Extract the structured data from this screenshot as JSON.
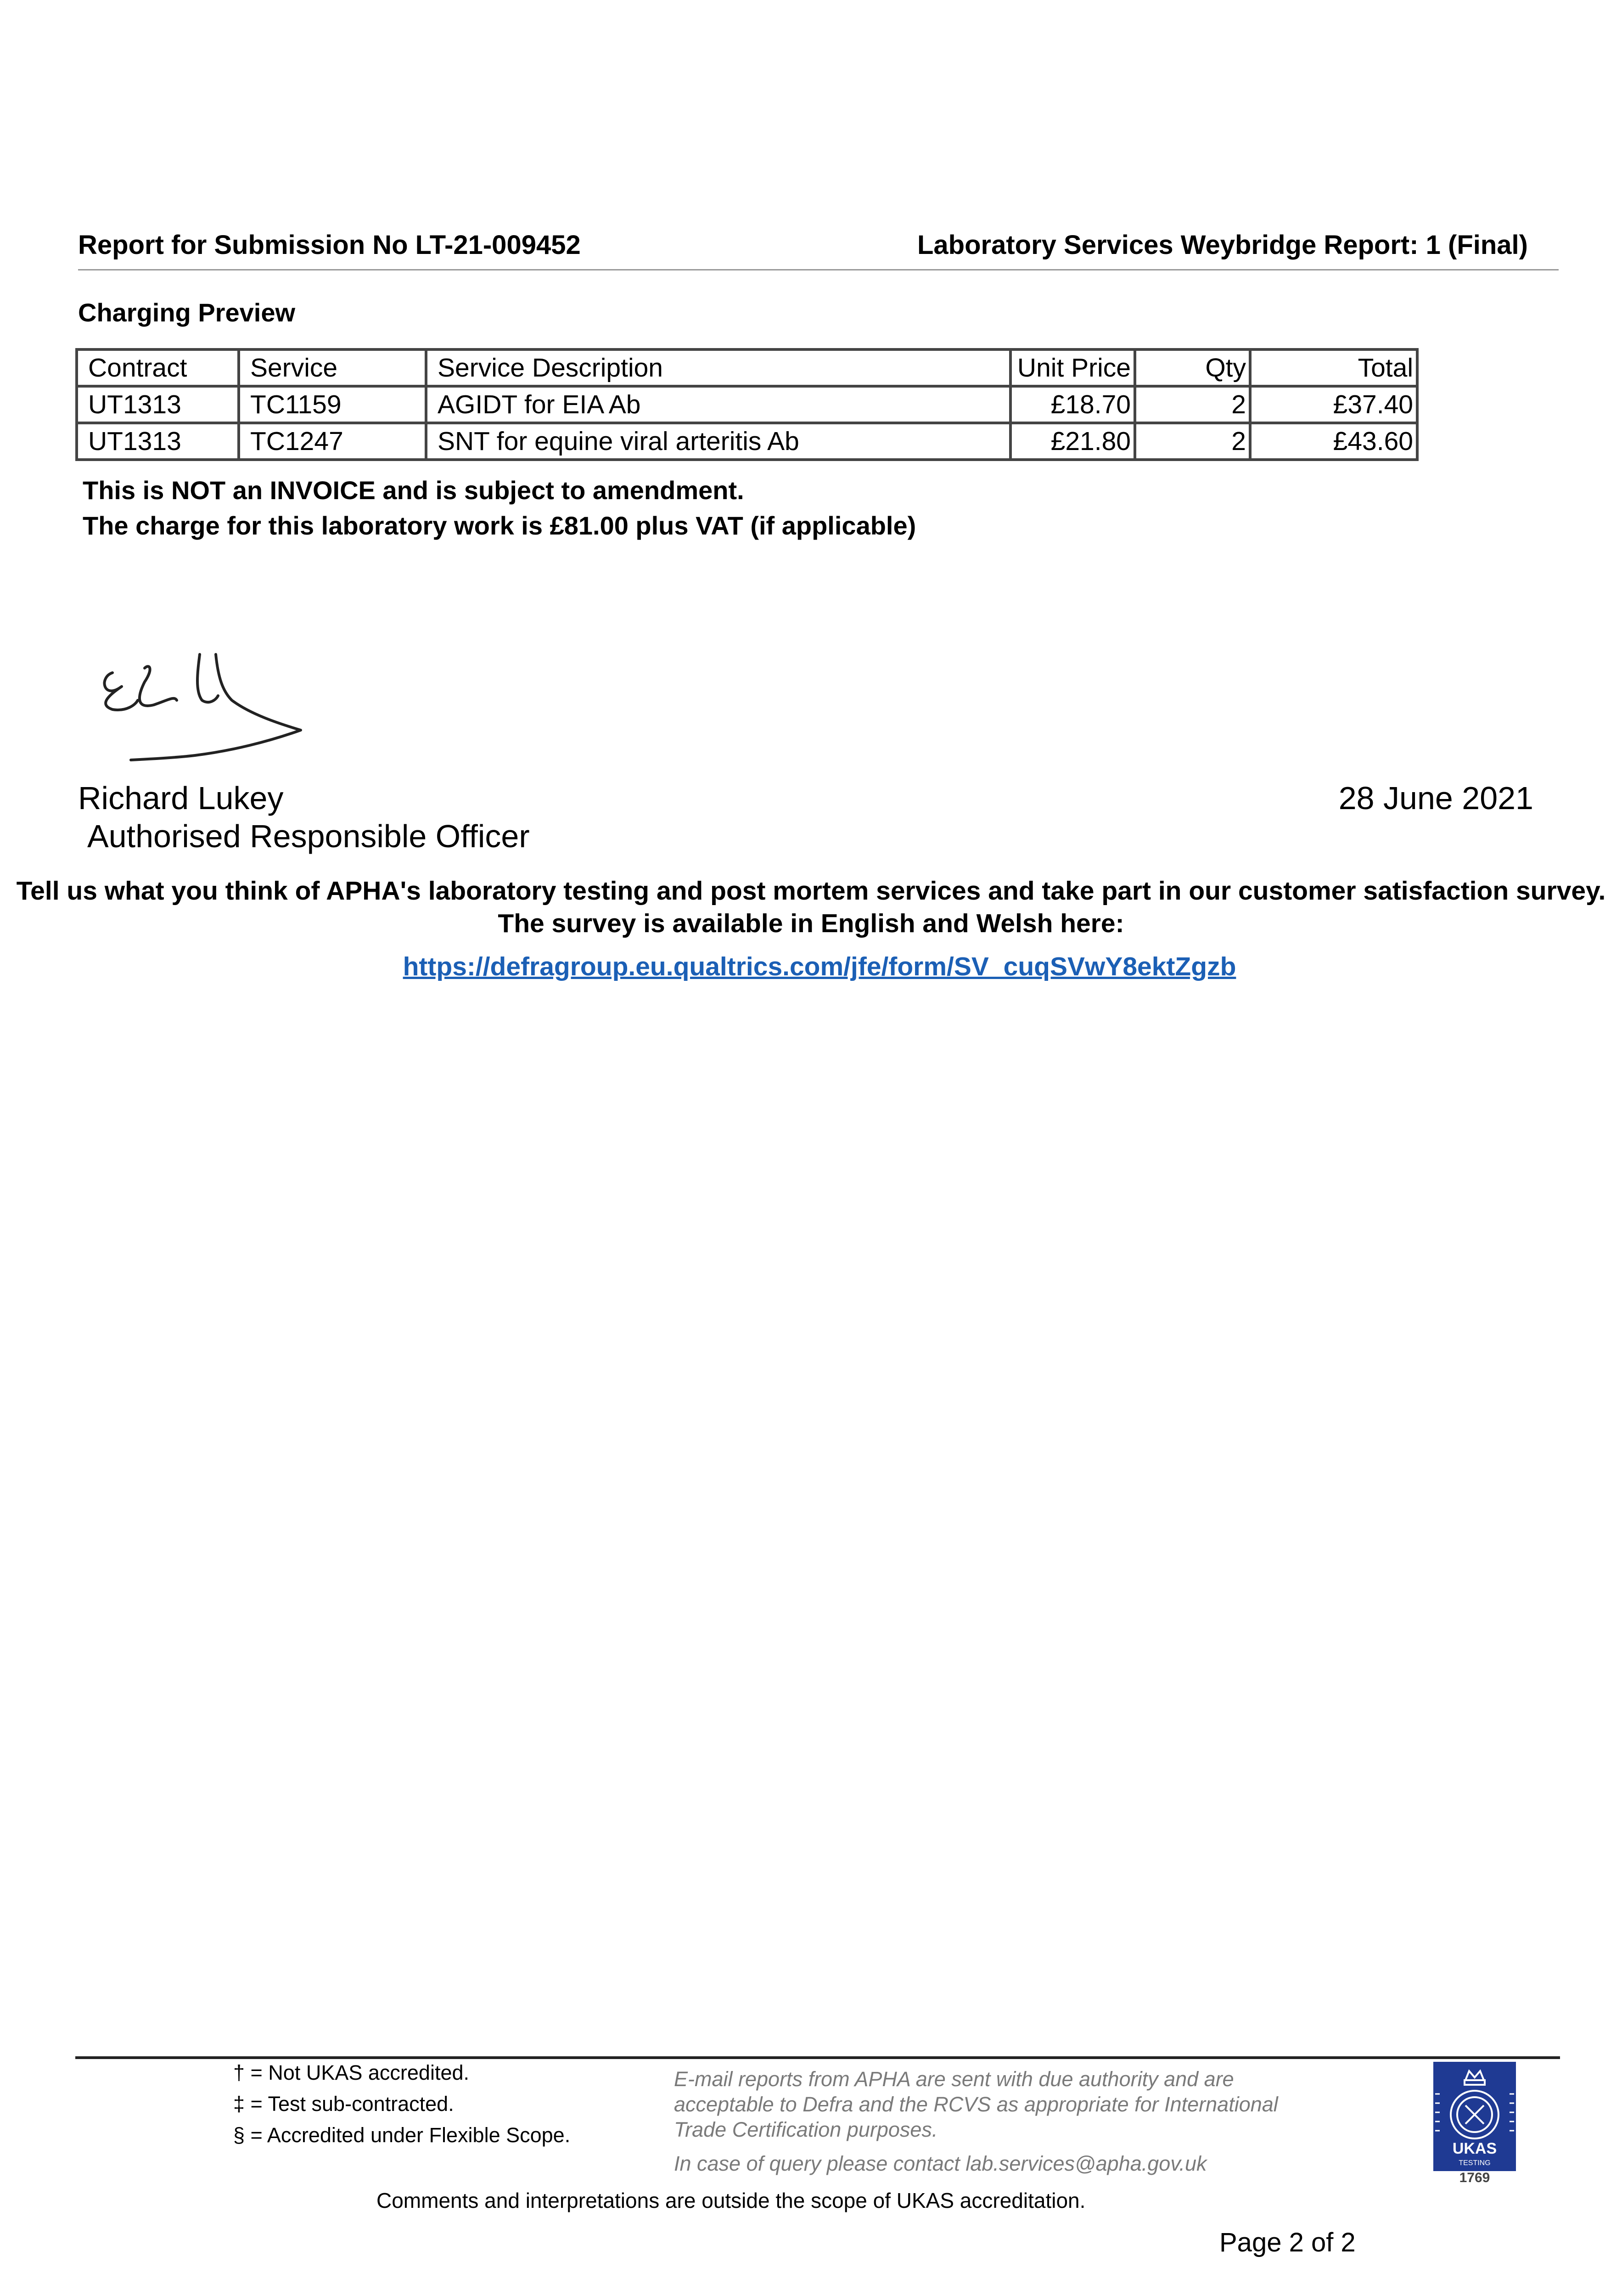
{
  "header": {
    "submission": "Report for Submission No LT-21-009452",
    "report": "Laboratory Services Weybridge Report: 1 (Final)"
  },
  "charging": {
    "title": "Charging Preview",
    "columns": [
      "Contract",
      "Service",
      "Service Description",
      "Unit Price",
      "Qty",
      "Total"
    ],
    "rows": [
      [
        "UT1313",
        "TC1159",
        "AGIDT for EIA Ab",
        "£18.70",
        "2",
        "£37.40"
      ],
      [
        "UT1313",
        "TC1247",
        "SNT for equine viral arteritis Ab",
        "£21.80",
        "2",
        "£43.60"
      ]
    ],
    "note_invoice": "This is NOT an INVOICE and is subject to amendment.",
    "note_charge": "The charge for this laboratory work is £81.00 plus VAT (if applicable)"
  },
  "signoff": {
    "name": "Richard Lukey",
    "role": "Authorised Responsible Officer",
    "date": "28 June 2021",
    "signature_text": "RJL"
  },
  "survey": {
    "text": "Tell us what you think of APHA's laboratory testing and post mortem services and take part in our customer satisfaction survey.  The survey is available in English and Welsh here:",
    "link": "https://defragroup.eu.qualtrics.com/jfe/form/SV_cuqSVwY8ektZgzb",
    "link_color": "#1b5fb5"
  },
  "footer": {
    "footnotes": [
      "† = Not UKAS accredited.",
      "‡ = Test sub-contracted.",
      "§ = Accredited under Flexible Scope."
    ],
    "email_note": [
      "E-mail reports from APHA are sent with due authority and are",
      "acceptable to Defra and the RCVS as appropriate for International",
      "Trade Certification purposes."
    ],
    "query": "In case of query please contact lab.services@apha.gov.uk",
    "logo_text": "UKAS TESTING",
    "logo_number": "1769",
    "logo_color": "#1f3a93",
    "comments": "Comments and interpretations are outside the scope of UKAS accreditation.",
    "page": "Page 2 of  2"
  }
}
